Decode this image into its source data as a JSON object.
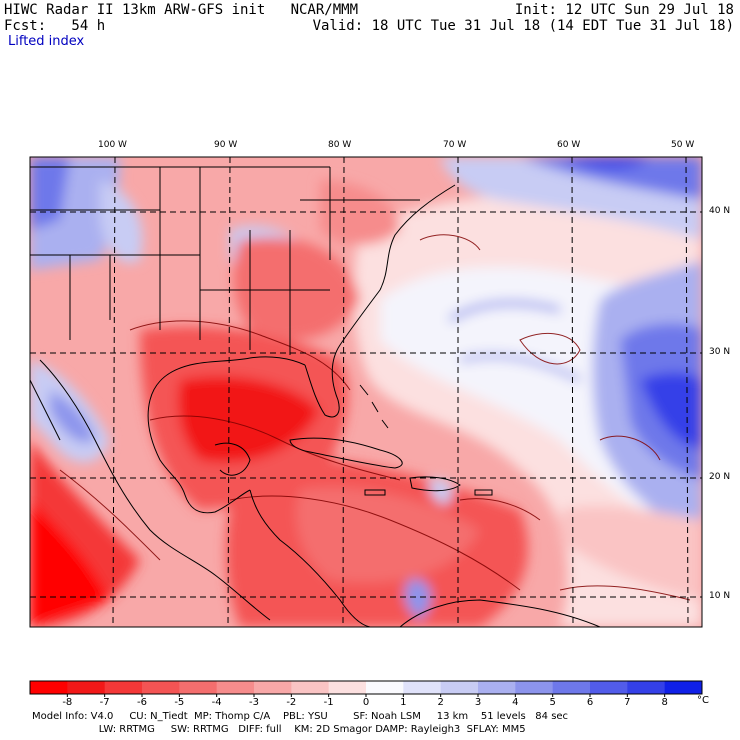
{
  "header": {
    "line1_left": "HIWC Radar II 13km ARW-GFS init   NCAR/MMM",
    "line1_right": "Init: 12 UTC Sun 29 Jul 18",
    "line2_left": "Fcst:   54 h",
    "line2_right": "Valid: 18 UTC Tue 31 Jul 18 (14 EDT Tue 31 Jul 18)",
    "field_name": "Lifted index"
  },
  "map": {
    "lon_labels": [
      "100 W",
      "90 W",
      "80 W",
      "70 W",
      "60 W",
      "50 W"
    ],
    "lat_labels": [
      "40 N",
      "30 N",
      "20 N",
      "10 N"
    ],
    "colors": {
      "deep_red": "#ff0000",
      "mid_red": "#f06060",
      "light_red": "#f8a8a8",
      "pale_red": "#fcd4d4",
      "near_zero": "#f4f4fc",
      "light_blue": "#c8ccf4",
      "mid_blue": "#8c94ec",
      "deep_blue": "#3440e8",
      "contour": "#800000",
      "grid": "#000000"
    }
  },
  "colorbar": {
    "unit": "°C",
    "labels": [
      "-8",
      "-7",
      "-6",
      "-5",
      "-4",
      "-3",
      "-2",
      "-1",
      "0",
      "1",
      "2",
      "3",
      "4",
      "5",
      "6",
      "7",
      "8"
    ],
    "colors": [
      "#ff0000",
      "#f21818",
      "#f43838",
      "#f45454",
      "#f46e6e",
      "#f68c8c",
      "#f8a8a8",
      "#fac4c4",
      "#fce0e0",
      "#fafafe",
      "#e0e2fa",
      "#c8ccf4",
      "#aab0f0",
      "#8c94ec",
      "#6e78ea",
      "#525cea",
      "#3440e8",
      "#1020e8"
    ]
  },
  "footer": {
    "line1": "Model Info: V4.0     CU: N_Tiedt  MP: Thomp C/A    PBL: YSU        SF: Noah LSM     13 km    51 levels   84 sec",
    "line2": "                     LW: RRTMG     SW: RRTMG   DIFF: full    KM: 2D Smagor DAMP: Rayleigh3  SFLAY: MM5"
  }
}
